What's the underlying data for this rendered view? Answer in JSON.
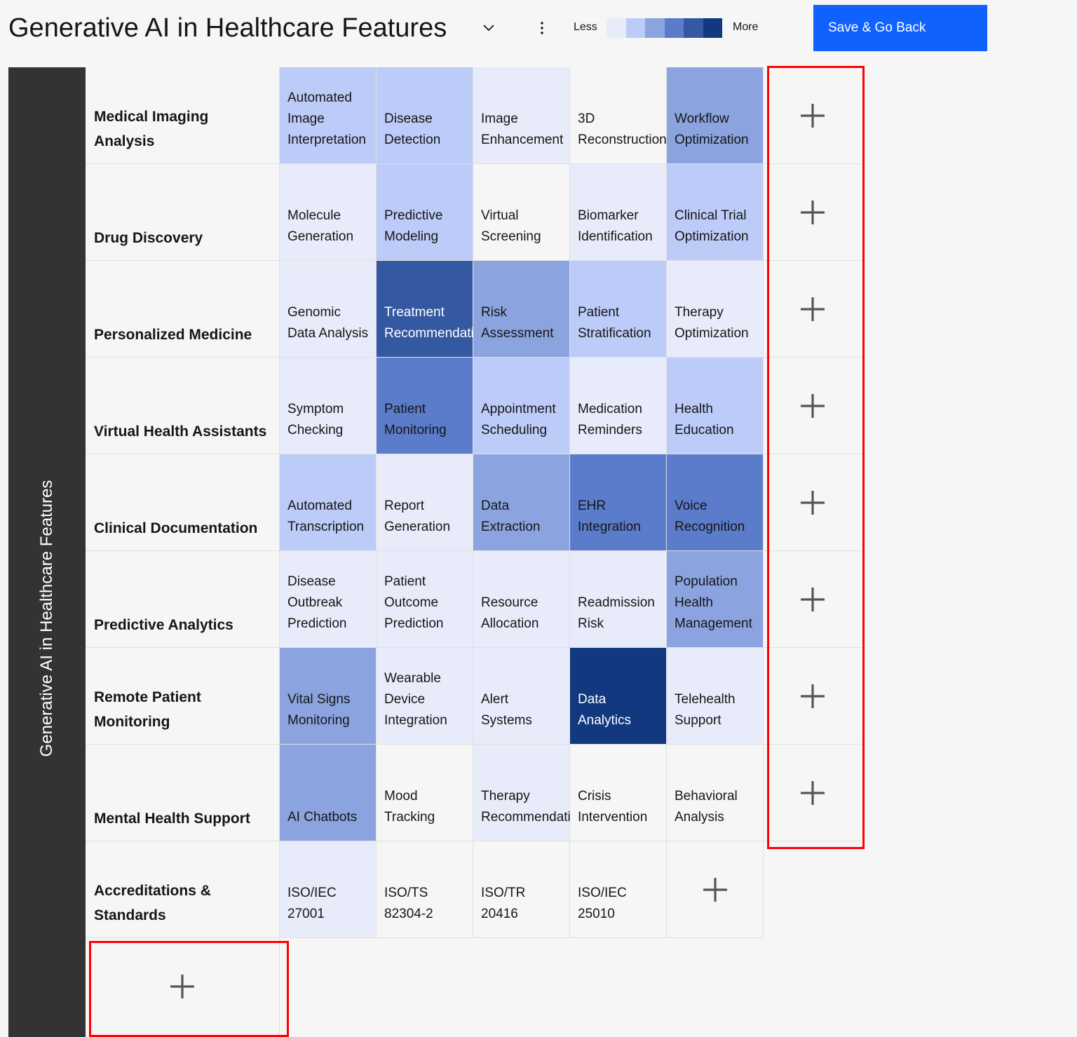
{
  "header": {
    "title": "Generative AI in Healthcare Features",
    "legend_less": "Less",
    "legend_more": "More",
    "save_label": "Save & Go Back"
  },
  "colors": {
    "levels": [
      "#f6f6f6",
      "#e8ecfa",
      "#bccbf8",
      "#8ba4e0",
      "#5b7bcb",
      "#3558a3",
      "#12397f"
    ],
    "accent": "#0f62fe",
    "sidebar": "#333333",
    "highlight": "#ff0000"
  },
  "sidebar": {
    "label": "Generative AI in Healthcare Features"
  },
  "rows": [
    {
      "label": "Medical Imaging Analysis",
      "features": [
        {
          "name": "Automated Image Interpretation",
          "level": 2
        },
        {
          "name": "Disease Detection",
          "level": 2
        },
        {
          "name": "Image Enhancement",
          "level": 1
        },
        {
          "name": "3D Reconstruction",
          "level": 0
        },
        {
          "name": "Workflow Optimization",
          "level": 3
        }
      ]
    },
    {
      "label": "Drug Discovery",
      "features": [
        {
          "name": "Molecule Generation",
          "level": 1
        },
        {
          "name": "Predictive Modeling",
          "level": 2
        },
        {
          "name": "Virtual Screening",
          "level": 0
        },
        {
          "name": "Biomarker Identification",
          "level": 1
        },
        {
          "name": "Clinical Trial Optimization",
          "level": 2
        }
      ]
    },
    {
      "label": "Personalized Medicine",
      "features": [
        {
          "name": "Genomic Data Analysis",
          "level": 1
        },
        {
          "name": "Treatment Recommendation",
          "level": 5
        },
        {
          "name": "Risk Assessment",
          "level": 3
        },
        {
          "name": "Patient Stratification",
          "level": 2
        },
        {
          "name": "Therapy Optimization",
          "level": 1
        }
      ]
    },
    {
      "label": "Virtual Health Assistants",
      "features": [
        {
          "name": "Symptom Checking",
          "level": 1
        },
        {
          "name": "Patient Monitoring",
          "level": 4
        },
        {
          "name": "Appointment Scheduling",
          "level": 2
        },
        {
          "name": "Medication Reminders",
          "level": 1
        },
        {
          "name": "Health Education",
          "level": 2
        }
      ]
    },
    {
      "label": "Clinical Documentation",
      "features": [
        {
          "name": "Automated Transcription",
          "level": 2
        },
        {
          "name": "Report Generation",
          "level": 1
        },
        {
          "name": "Data Extraction",
          "level": 3
        },
        {
          "name": "EHR Integration",
          "level": 4
        },
        {
          "name": "Voice Recognition",
          "level": 4
        }
      ]
    },
    {
      "label": "Predictive Analytics",
      "features": [
        {
          "name": "Disease Outbreak Prediction",
          "level": 1
        },
        {
          "name": "Patient Outcome Prediction",
          "level": 1
        },
        {
          "name": "Resource Allocation",
          "level": 1
        },
        {
          "name": "Readmission Risk",
          "level": 1
        },
        {
          "name": "Population Health Management",
          "level": 3
        }
      ]
    },
    {
      "label": "Remote Patient Monitoring",
      "features": [
        {
          "name": "Vital Signs Monitoring",
          "level": 3
        },
        {
          "name": "Wearable Device Integration",
          "level": 1
        },
        {
          "name": "Alert Systems",
          "level": 1
        },
        {
          "name": "Data Analytics",
          "level": 6
        },
        {
          "name": "Telehealth Support",
          "level": 1
        }
      ]
    },
    {
      "label": "Mental Health Support",
      "features": [
        {
          "name": "AI Chatbots",
          "level": 3
        },
        {
          "name": "Mood Tracking",
          "level": 0
        },
        {
          "name": "Therapy Recommendations",
          "level": 1
        },
        {
          "name": "Crisis Intervention",
          "level": 0
        },
        {
          "name": "Behavioral Analysis",
          "level": 0
        }
      ]
    },
    {
      "label": "Accreditations & Standards",
      "features": [
        {
          "name": "ISO/IEC 27001",
          "level": 1
        },
        {
          "name": "ISO/TS 82304-2",
          "level": 0
        },
        {
          "name": "ISO/TR 20416",
          "level": 0
        },
        {
          "name": "ISO/IEC 25010",
          "level": 0
        }
      ]
    }
  ]
}
